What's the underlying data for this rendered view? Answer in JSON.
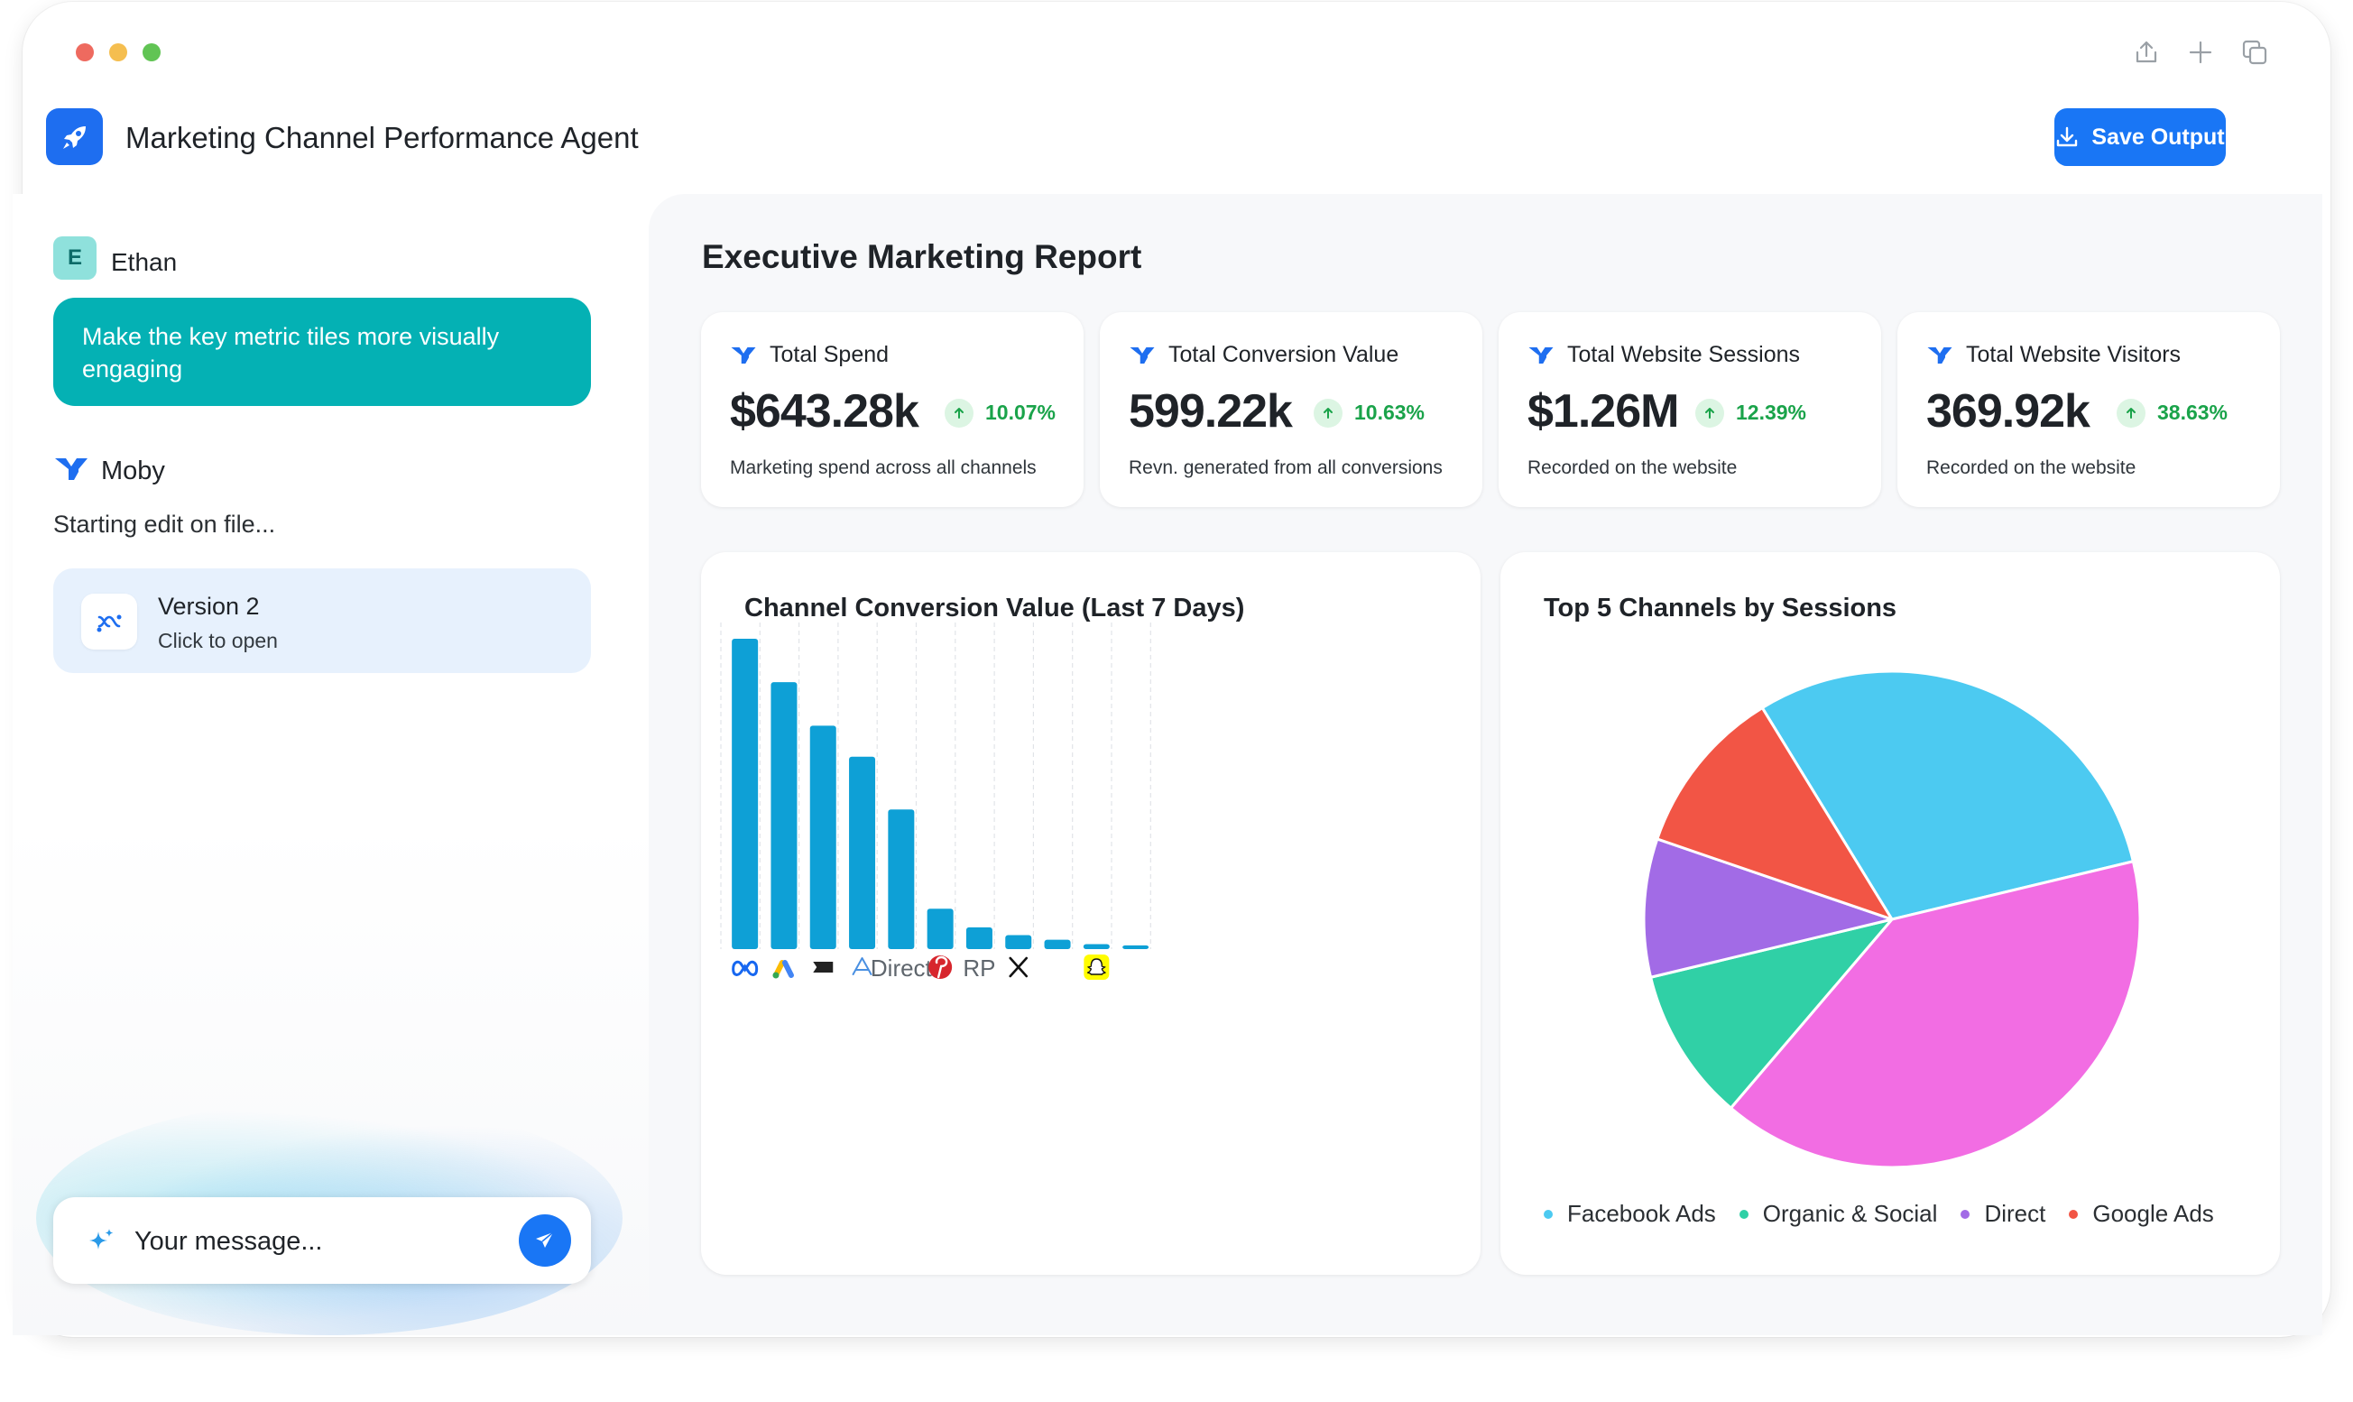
{
  "app": {
    "title": "Marketing Channel Performance Agent",
    "save_label": "Save Output"
  },
  "titlebar": {
    "icons": [
      "share-icon",
      "plus-icon",
      "duplicate-icon"
    ]
  },
  "chat": {
    "user": {
      "initial": "E",
      "name": "Ethan",
      "message": "Make the key metric tiles more visually engaging"
    },
    "agent": {
      "name": "Moby",
      "status": "Starting edit on file..."
    },
    "version_card": {
      "title": "Version 2",
      "subtitle": "Click to open"
    },
    "input": {
      "placeholder": "Your message..."
    }
  },
  "report": {
    "title": "Executive Marketing Report",
    "tiles": [
      {
        "title": "Total Spend",
        "value": "$643.28k",
        "change": "10.07%",
        "description": "Marketing spend across all channels"
      },
      {
        "title": "Total Conversion Value",
        "value": "599.22k",
        "change": "10.63%",
        "description": "Revn. generated from all conversions"
      },
      {
        "title": "Total Website Sessions",
        "value": "$1.26M",
        "change": "12.39%",
        "description": "Recorded on the website"
      },
      {
        "title": "Total Website Visitors",
        "value": "369.92k",
        "change": "38.63%",
        "description": "Recorded on the website"
      }
    ],
    "colors": {
      "accent": "#1976f5",
      "positive": "#1aa34a",
      "bar": "#0ea0d6",
      "teal": "#04b1b4"
    }
  },
  "chart_data": [
    {
      "type": "bar",
      "title": "Channel Conversion Value (Last 7 Days)",
      "categories": [
        "meta-icon",
        "google-ads-icon",
        "flag-icon",
        "triangle-icon",
        "Direct",
        "pinterest-icon",
        "RP",
        "x-icon",
        "",
        "snapchat-icon",
        ""
      ],
      "category_labels": [
        "",
        "",
        "",
        "",
        "Direct",
        "",
        "RP",
        "",
        "",
        "",
        ""
      ],
      "values": [
        100,
        86,
        72,
        62,
        45,
        13,
        7,
        4.5,
        3,
        1.6,
        1.2
      ],
      "ylim": [
        0,
        100
      ],
      "grid": "vertical dashed"
    },
    {
      "type": "pie",
      "title": "Top 5 Channels by Sessions",
      "slices": [
        {
          "label": "Facebook Ads",
          "value": 30,
          "color": "#4ccaf1"
        },
        {
          "label": "",
          "value": 40,
          "color": "#f26de3"
        },
        {
          "label": "Organic & Social",
          "value": 10,
          "color": "#30d0a6"
        },
        {
          "label": "Direct",
          "value": 9,
          "color": "#a26be6"
        },
        {
          "label": "Google Ads",
          "value": 11,
          "color": "#f25545"
        }
      ],
      "legend": [
        "Facebook Ads",
        "Organic & Social",
        "Direct",
        "Google Ads"
      ],
      "legend_position": "bottom"
    }
  ]
}
